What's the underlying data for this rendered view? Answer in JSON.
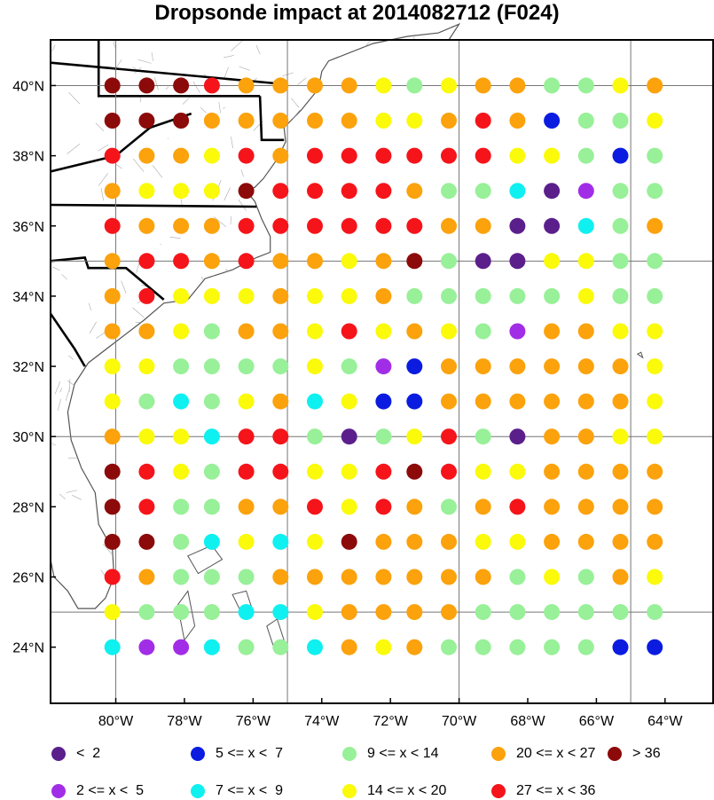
{
  "title": "Dropsonde impact at 2014082712 (F024)",
  "map": {
    "lat_labels": [
      "40°N",
      "38°N",
      "36°N",
      "34°N",
      "32°N",
      "30°N",
      "28°N",
      "26°N",
      "24°N"
    ],
    "lon_labels": [
      "80°W",
      "78°W",
      "76°W",
      "74°W",
      "72°W",
      "70°W",
      "68°W",
      "66°W",
      "64°W"
    ],
    "lat_range": [
      22.4,
      41.3
    ],
    "lon_range": [
      -81.9,
      -62.6
    ]
  },
  "legend": [
    {
      "key": "c1",
      "label": "<  2",
      "color": "#5b1f8c"
    },
    {
      "key": "c5",
      "label": "5 <= x <  7",
      "color": "#0b1ce0"
    },
    {
      "key": "c9",
      "label": "9 <= x < 14",
      "color": "#98f098"
    },
    {
      "key": "c20",
      "label": "20 <= x < 27",
      "color": "#fba20c"
    },
    {
      "key": "c36",
      "label": "> 36",
      "color": "#8c0a0a"
    },
    {
      "key": "c2",
      "label": "2 <= x <  5",
      "color": "#a12ee6"
    },
    {
      "key": "c7",
      "label": "7 <= x <  9",
      "color": "#0ff0f0"
    },
    {
      "key": "c14",
      "label": "14 <= x < 20",
      "color": "#fafa0a"
    },
    {
      "key": "c27",
      "label": "27 <= x < 36",
      "color": "#f5141a"
    }
  ],
  "chart_data": {
    "type": "scatter",
    "title": "Dropsonde impact at 2014082712 (F024)",
    "lons": [
      -80.1,
      -79.1,
      -78.1,
      -77.2,
      -76.2,
      -75.2,
      -74.2,
      -73.2,
      -72.2,
      -71.3,
      -70.3,
      -69.3,
      -68.3,
      -67.3,
      -66.3,
      -65.3,
      -64.3
    ],
    "lats": [
      40.0,
      39.0,
      38.0,
      37.0,
      36.0,
      35.0,
      34.0,
      33.0,
      32.0,
      31.0,
      30.0,
      29.0,
      28.0,
      27.0,
      26.0,
      25.0,
      24.0
    ],
    "categories_by_row": [
      [
        "c36",
        "c36",
        "c36",
        "c27",
        "c20",
        "c20",
        "c20",
        "c20",
        "c14",
        "c9",
        "c14",
        "c20",
        "c20",
        "c9",
        "c9",
        "c14",
        "c20"
      ],
      [
        "c36",
        "c36",
        "c36",
        "c20",
        "c20",
        "c20",
        "c20",
        "c20",
        "c14",
        "c14",
        "c20",
        "c27",
        "c20",
        "c5",
        "c9",
        "c9",
        "c14"
      ],
      [
        "c27",
        "c20",
        "c20",
        "c14",
        "c27",
        "c20",
        "c27",
        "c27",
        "c27",
        "c27",
        "c27",
        "c27",
        "c14",
        "c14",
        "c9",
        "c5",
        "c9"
      ],
      [
        "c20",
        "c14",
        "c14",
        "c14",
        "c36",
        "c27",
        "c27",
        "c27",
        "c27",
        "c20",
        "c9",
        "c9",
        "c7",
        "c1",
        "c2",
        "c9",
        "c9"
      ],
      [
        "c27",
        "c20",
        "c20",
        "c20",
        "c27",
        "c27",
        "c27",
        "c27",
        "c27",
        "c27",
        "c20",
        "c20",
        "c1",
        "c1",
        "c7",
        "c9",
        "c20"
      ],
      [
        "c20",
        "c27",
        "c27",
        "c20",
        "c27",
        "c20",
        "c20",
        "c14",
        "c20",
        "c36",
        "c9",
        "c1",
        "c1",
        "c14",
        "c14",
        "c9",
        "c9"
      ],
      [
        "c20",
        "c27",
        "c14",
        "c14",
        "c14",
        "c20",
        "c14",
        "c14",
        "c20",
        "c9",
        "c9",
        "c9",
        "c9",
        "c9",
        "c14",
        "c9",
        "c9"
      ],
      [
        "c20",
        "c20",
        "c14",
        "c9",
        "c20",
        "c20",
        "c14",
        "c27",
        "c14",
        "c20",
        "c14",
        "c9",
        "c2",
        "c20",
        "c20",
        "c14",
        "c14"
      ],
      [
        "c14",
        "c14",
        "c9",
        "c9",
        "c9",
        "c9",
        "c14",
        "c9",
        "c2",
        "c5",
        "c20",
        "c20",
        "c20",
        "c20",
        "c20",
        "c20",
        "c14"
      ],
      [
        "c14",
        "c9",
        "c7",
        "c9",
        "c14",
        "c20",
        "c7",
        "c14",
        "c5",
        "c5",
        "c20",
        "c20",
        "c20",
        "c20",
        "c20",
        "c20",
        "c14"
      ],
      [
        "c20",
        "c14",
        "c14",
        "c7",
        "c27",
        "c27",
        "c9",
        "c1",
        "c9",
        "c14",
        "c27",
        "c9",
        "c1",
        "c20",
        "c20",
        "c14",
        "c14"
      ],
      [
        "c36",
        "c27",
        "c14",
        "c9",
        "c27",
        "c27",
        "c14",
        "c14",
        "c27",
        "c36",
        "c27",
        "c14",
        "c14",
        "c20",
        "c20",
        "c20",
        "c20"
      ],
      [
        "c36",
        "c27",
        "c9",
        "c9",
        "c20",
        "c20",
        "c27",
        "c14",
        "c27",
        "c20",
        "c9",
        "c20",
        "c27",
        "c20",
        "c20",
        "c20",
        "c20"
      ],
      [
        "c36",
        "c36",
        "c9",
        "c7",
        "c14",
        "c7",
        "c14",
        "c36",
        "c20",
        "c20",
        "c20",
        "c14",
        "c14",
        "c20",
        "c20",
        "c20",
        "c20"
      ],
      [
        "c27",
        "c20",
        "c9",
        "c9",
        "c9",
        "c20",
        "c20",
        "c20",
        "c20",
        "c20",
        "c20",
        "c20",
        "c9",
        "c14",
        "c9",
        "c20",
        "c14"
      ],
      [
        "c14",
        "c9",
        "c9",
        "c9",
        "c7",
        "c7",
        "c14",
        "c20",
        "c20",
        "c20",
        "c20",
        "c9",
        "c9",
        "c9",
        "c9",
        "c9",
        "c9"
      ],
      [
        "c7",
        "c2",
        "c2",
        "c7",
        "c9",
        "c9",
        "c7",
        "c20",
        "c14",
        "c20",
        "c9",
        "c9",
        "c9",
        "c9",
        "c9",
        "c5",
        "c5"
      ]
    ]
  }
}
